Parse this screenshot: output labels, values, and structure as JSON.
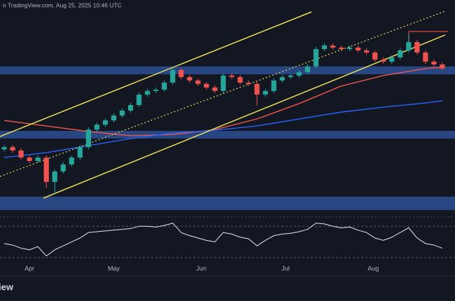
{
  "header": "n TradingView.com, Aug 25, 2025 10:46 UTC",
  "logo": "iew",
  "chart_data": {
    "type": "candlestick",
    "xlim": [
      -0.5,
      53.5
    ],
    "ylim": [
      0,
      100
    ],
    "xticks": [
      {
        "value": 3,
        "label": "Apr"
      },
      {
        "value": 13,
        "label": "May"
      },
      {
        "value": 23.4,
        "label": "Jun"
      },
      {
        "value": 33.4,
        "label": "Jul"
      },
      {
        "value": 43.8,
        "label": "Aug"
      }
    ],
    "open": [
      30.0,
      31.1,
      29.5,
      26.2,
      24.6,
      26.2,
      14.8,
      19.7,
      23.0,
      26.2,
      31.1,
      39.3,
      41.6,
      43.6,
      45.9,
      48.2,
      50.8,
      55.7,
      57.4,
      58.0,
      61.3,
      67.2,
      63.9,
      62.3,
      60.7,
      59.0,
      57.4,
      64.6,
      63.9,
      61.3,
      60.7,
      55.7,
      57.4,
      62.3,
      63.9,
      64.6,
      66.2,
      68.9,
      77.0,
      78.7,
      77.7,
      77.0,
      77.7,
      76.4,
      75.4,
      72.1,
      71.1,
      73.1,
      76.4,
      80.3,
      75.4,
      71.1,
      69.8
    ],
    "high": [
      32.1,
      32.1,
      30.5,
      27.2,
      27.2,
      27.2,
      20.7,
      24.0,
      27.2,
      32.1,
      40.3,
      42.6,
      44.6,
      46.9,
      49.2,
      51.8,
      56.7,
      58.4,
      59.0,
      62.3,
      68.2,
      68.2,
      64.9,
      63.3,
      61.7,
      60.0,
      65.6,
      65.6,
      64.9,
      62.3,
      61.7,
      58.4,
      63.3,
      64.9,
      65.6,
      67.2,
      69.9,
      78.0,
      79.7,
      79.7,
      78.7,
      78.7,
      78.7,
      77.4,
      76.4,
      73.1,
      74.1,
      77.4,
      84.3,
      81.3,
      76.4,
      72.1,
      70.8
    ],
    "low": [
      29.0,
      28.5,
      25.2,
      23.6,
      23.6,
      12.0,
      9.0,
      18.7,
      22.0,
      25.2,
      30.1,
      38.3,
      40.6,
      42.6,
      44.9,
      47.2,
      49.8,
      54.7,
      56.4,
      57.0,
      60.3,
      62.9,
      61.3,
      59.7,
      58.0,
      56.4,
      56.4,
      62.9,
      60.3,
      59.7,
      50.5,
      54.7,
      56.4,
      61.3,
      62.9,
      63.6,
      65.2,
      67.9,
      76.0,
      76.7,
      76.0,
      76.0,
      75.4,
      74.4,
      71.1,
      70.1,
      70.1,
      72.1,
      75.4,
      74.4,
      70.1,
      68.8,
      66.9
    ],
    "close": [
      31.1,
      29.5,
      26.2,
      24.6,
      26.2,
      14.8,
      19.7,
      23.0,
      26.2,
      31.1,
      39.3,
      41.6,
      43.6,
      45.9,
      48.2,
      50.8,
      55.7,
      57.4,
      58.0,
      61.3,
      67.2,
      63.9,
      62.3,
      60.7,
      59.0,
      57.4,
      64.6,
      63.9,
      61.3,
      60.7,
      55.7,
      57.4,
      62.3,
      63.9,
      64.6,
      66.2,
      68.9,
      77.0,
      78.7,
      77.7,
      77.0,
      77.7,
      76.4,
      75.4,
      72.1,
      71.1,
      73.1,
      76.4,
      80.3,
      75.4,
      71.1,
      69.8,
      67.9
    ],
    "up_color": "#26a69a",
    "down_color": "#ef5350",
    "overlays": [
      {
        "color": "#f2584a",
        "x": [
          0,
          5,
          10,
          15,
          20,
          25,
          30,
          35,
          40,
          45,
          50,
          52
        ],
        "values": [
          43.6,
          41.0,
          38.4,
          36.4,
          37.0,
          39.3,
          44.3,
          51.5,
          59.7,
          64.6,
          67.9,
          68.5
        ]
      },
      {
        "color": "#2962ff",
        "x": [
          0,
          5,
          10,
          15,
          20,
          25,
          30,
          35,
          40,
          45,
          50,
          52
        ],
        "values": [
          26.2,
          28.5,
          31.8,
          35.1,
          37.7,
          39.0,
          41.0,
          44.3,
          47.5,
          49.8,
          51.8,
          52.8
        ]
      }
    ],
    "zones": [
      {
        "from": 65.2,
        "to": 68.9
      },
      {
        "from": 35.1,
        "to": 38.7
      },
      {
        "from": 1.6,
        "to": 7.9
      }
    ],
    "zone_color": "#2b4f93",
    "rsi": {
      "color": "#e6e8ef",
      "ylim": [
        17.5,
        80
      ],
      "levels": [
        70,
        30
      ],
      "values": [
        48,
        46,
        42,
        40,
        44,
        32,
        40,
        45,
        50,
        55,
        62,
        63,
        64,
        65,
        66,
        67,
        70,
        70,
        69,
        71,
        74,
        62,
        58,
        55,
        52,
        50,
        62,
        60,
        56,
        54,
        45,
        52,
        58,
        60,
        61,
        63,
        66,
        74,
        73,
        70,
        68,
        69,
        65,
        62,
        55,
        52,
        56,
        62,
        68,
        55,
        48,
        46,
        42
      ]
    }
  }
}
